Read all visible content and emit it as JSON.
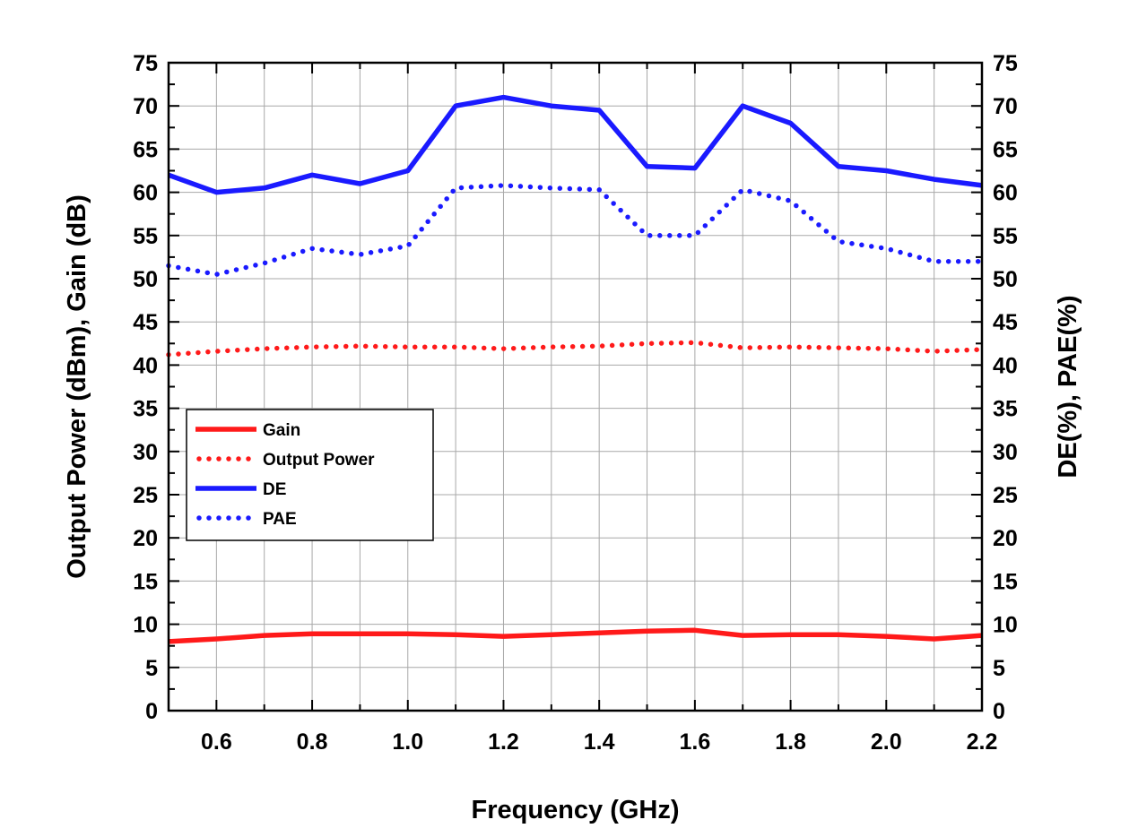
{
  "chart_data": {
    "type": "line",
    "title": "",
    "xlabel": "Frequency (GHz)",
    "ylabel_left": "Output Power (dBm), Gain (dB)",
    "ylabel_right": "DE(%), PAE(%)",
    "xlim": [
      0.5,
      2.2
    ],
    "ylim": [
      0,
      75
    ],
    "x_ticks": [
      "0.6",
      "0.8",
      "1.0",
      "1.2",
      "1.4",
      "1.6",
      "1.8",
      "2.0",
      "2.2"
    ],
    "x_tick_values": [
      0.6,
      0.8,
      1.0,
      1.2,
      1.4,
      1.6,
      1.8,
      2.0,
      2.2
    ],
    "y_ticks": [
      "0",
      "5",
      "10",
      "15",
      "20",
      "25",
      "30",
      "35",
      "40",
      "45",
      "50",
      "55",
      "60",
      "65",
      "70",
      "75"
    ],
    "y_tick_values": [
      0,
      5,
      10,
      15,
      20,
      25,
      30,
      35,
      40,
      45,
      50,
      55,
      60,
      65,
      70,
      75
    ],
    "grid": true,
    "legend_position": "middle-left",
    "x": [
      0.5,
      0.6,
      0.7,
      0.8,
      0.9,
      1.0,
      1.1,
      1.2,
      1.3,
      1.4,
      1.5,
      1.6,
      1.7,
      1.8,
      1.9,
      2.0,
      2.1,
      2.2
    ],
    "series": [
      {
        "name": "Gain",
        "color": "#ff1a1a",
        "style": "solid",
        "values": [
          8.0,
          8.3,
          8.7,
          8.9,
          8.9,
          8.9,
          8.8,
          8.6,
          8.8,
          9.0,
          9.2,
          9.3,
          8.7,
          8.8,
          8.8,
          8.6,
          8.3,
          8.7
        ]
      },
      {
        "name": "Output Power",
        "color": "#ff1a1a",
        "style": "dotted",
        "values": [
          41.2,
          41.6,
          41.9,
          42.1,
          42.2,
          42.1,
          42.1,
          41.9,
          42.1,
          42.2,
          42.5,
          42.6,
          42.0,
          42.1,
          42.0,
          41.9,
          41.6,
          41.8
        ]
      },
      {
        "name": "DE",
        "color": "#1a1aff",
        "style": "solid",
        "values": [
          62.0,
          60.0,
          60.5,
          62.0,
          61.0,
          62.5,
          70.0,
          71.0,
          70.0,
          69.5,
          63.0,
          62.8,
          70.0,
          68.0,
          63.0,
          62.5,
          61.5,
          60.8
        ]
      },
      {
        "name": "PAE",
        "color": "#1a1aff",
        "style": "dotted",
        "values": [
          51.5,
          50.5,
          51.8,
          53.5,
          52.8,
          53.8,
          60.5,
          60.8,
          60.5,
          60.3,
          55.0,
          55.0,
          60.3,
          59.0,
          54.3,
          53.5,
          52.0,
          52.0
        ]
      }
    ]
  }
}
